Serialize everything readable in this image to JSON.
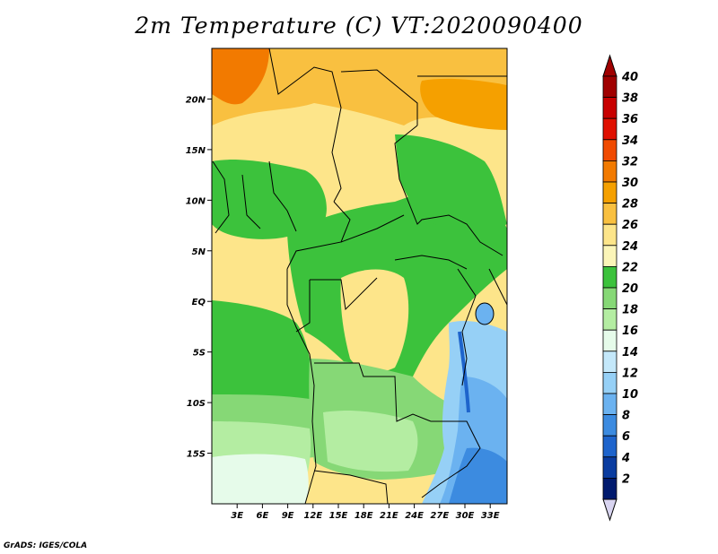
{
  "title": "2m Temperature (C) VT:2020090400",
  "credit": "GrADS: IGES/COLA",
  "map": {
    "lon_range": [
      0,
      35
    ],
    "lat_range": [
      -20,
      25
    ],
    "lon_ticks": [
      "3E",
      "6E",
      "9E",
      "12E",
      "15E",
      "18E",
      "21E",
      "24E",
      "27E",
      "30E",
      "33E"
    ],
    "lon_tick_values": [
      3,
      6,
      9,
      12,
      15,
      18,
      21,
      24,
      27,
      30,
      33
    ],
    "lat_ticks": [
      "20N",
      "15N",
      "10N",
      "5N",
      "EQ",
      "5S",
      "10S",
      "15S"
    ],
    "lat_tick_values": [
      20,
      15,
      10,
      5,
      0,
      -5,
      -10,
      -15
    ]
  },
  "colorbar": {
    "levels": [
      "40",
      "38",
      "36",
      "34",
      "32",
      "30",
      "28",
      "26",
      "24",
      "22",
      "20",
      "18",
      "16",
      "14",
      "12",
      "10",
      "8",
      "6",
      "4",
      "2"
    ],
    "colors": [
      "#a00000",
      "#c80000",
      "#e01000",
      "#f04a00",
      "#f27a00",
      "#f5a000",
      "#f9c040",
      "#fde58a",
      "#fbf5b8",
      "#3cc23c",
      "#86d876",
      "#b4eda2",
      "#e6fbea",
      "#c4e8fa",
      "#96d0f6",
      "#6bb2f0",
      "#3c8be0",
      "#1e64cc",
      "#0a3ca0",
      "#001a6e"
    ],
    "top_arrow_color": "#a00000",
    "bottom_arrow_color": "#d8d4f0"
  }
}
